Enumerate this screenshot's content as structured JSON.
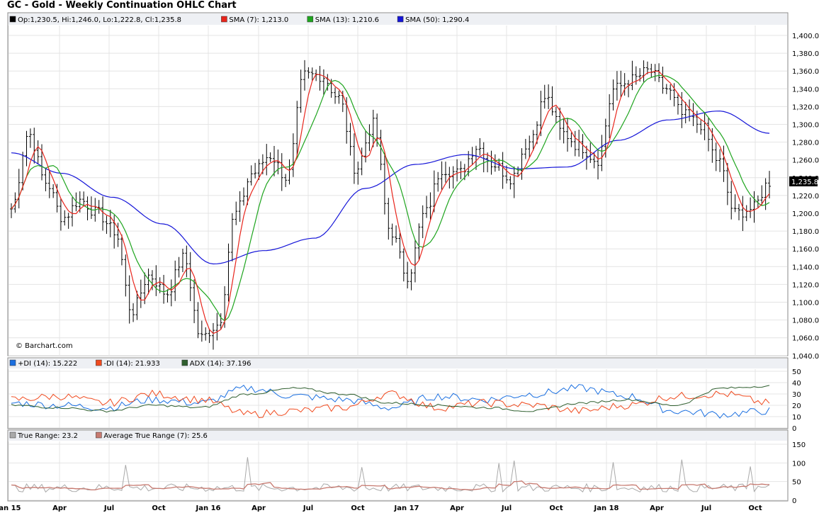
{
  "title": "GC - Gold - Weekly Continuation OHLC Chart",
  "watermark": "© Barchart.com",
  "price_legend": [
    {
      "label": "Op:1,230.5, Hi:1,246.0, Lo:1,222.8, Cl:1,235.8",
      "color": "#000000"
    },
    {
      "label": "SMA (7): 1,213.0",
      "color": "#e8251c"
    },
    {
      "label": "SMA (13): 1,210.6",
      "color": "#1fa51f"
    },
    {
      "label": "SMA (50): 1,290.4",
      "color": "#1414d8"
    }
  ],
  "dmi_legend": [
    {
      "label": "+DI (14): 15.222",
      "color": "#1a6fe0"
    },
    {
      "label": "-DI (14): 21.933",
      "color": "#f04a1e"
    },
    {
      "label": "ADX (14): 37.196",
      "color": "#2f5f2f"
    }
  ],
  "tr_legend": [
    {
      "label": "True Range: 23.2",
      "color": "#a9a9a9"
    },
    {
      "label": "Average True Range (7): 25.6",
      "color": "#c77a70"
    }
  ],
  "last_price_label": "1,235.8",
  "x_ticks": [
    "Jan 15",
    "Apr",
    "Jul",
    "Oct",
    "Jan 16",
    "Apr",
    "Jul",
    "Oct",
    "Jan 17",
    "Apr",
    "Jul",
    "Oct",
    "Jan 18",
    "Apr",
    "Jul",
    "Oct"
  ],
  "price_ticks": [
    "1,400.0",
    "1,380.0",
    "1,360.0",
    "1,340.0",
    "1,320.0",
    "1,300.0",
    "1,280.0",
    "1,260.0",
    "1,240.0",
    "1,220.0",
    "1,200.0",
    "1,180.0",
    "1,160.0",
    "1,140.0",
    "1,120.0",
    "1,100.0",
    "1,080.0",
    "1,060.0",
    "1,040.0"
  ],
  "dmi_ticks": [
    "50",
    "40",
    "30",
    "20",
    "10",
    "0"
  ],
  "tr_ticks": [
    "150",
    "100",
    "50",
    "0"
  ],
  "chart_data": {
    "type": "line",
    "x": [
      "Jan 15",
      "Apr",
      "Jul",
      "Oct",
      "Jan 16",
      "Apr",
      "Jul",
      "Oct",
      "Jan 17",
      "Apr",
      "Jul",
      "Oct",
      "Jan 18",
      "Apr",
      "Jul",
      "Oct"
    ],
    "ylim": [
      1040,
      1400
    ],
    "series": [
      {
        "name": "SMA (50)",
        "values": [
          1268,
          1245,
          1218,
          1188,
          1143,
          1158,
          1172,
          1228,
          1255,
          1266,
          1250,
          1252,
          1282,
          1305,
          1315,
          1290
        ]
      },
      {
        "name": "SMA (13)",
        "values": [
          1210,
          1200,
          1190,
          1120,
          1085,
          1230,
          1330,
          1320,
          1190,
          1235,
          1265,
          1295,
          1290,
          1355,
          1290,
          1210
        ]
      },
      {
        "name": "SMA (7)",
        "values": [
          1225,
          1195,
          1192,
          1150,
          1075,
          1250,
          1345,
          1280,
          1165,
          1255,
          1265,
          1305,
          1340,
          1350,
          1255,
          1213
        ]
      }
    ],
    "dmi_ylim": [
      0,
      50
    ],
    "tr_ylim": [
      0,
      150
    ]
  }
}
